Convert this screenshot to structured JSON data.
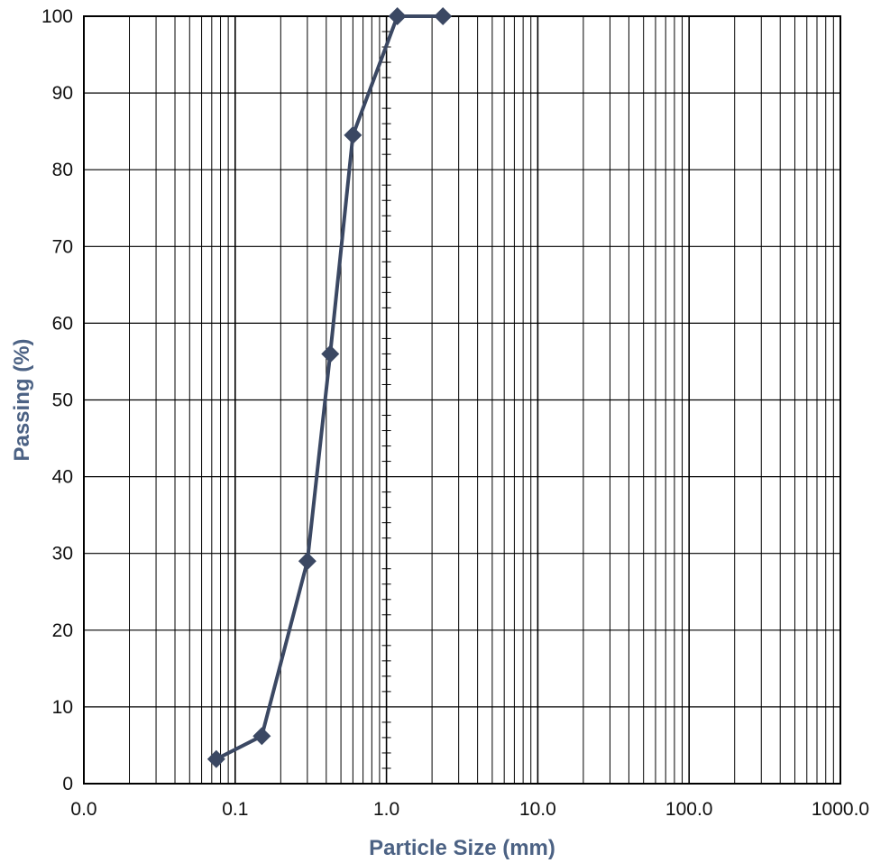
{
  "chart_data": {
    "type": "line",
    "title": "",
    "xlabel": "Particle Size (mm)",
    "ylabel": "Passing (%)",
    "x_scale": "log",
    "xlim": [
      0.01,
      1000
    ],
    "ylim": [
      0,
      100
    ],
    "x_tick_labels": [
      "0.0",
      "0.1",
      "1.0",
      "10.0",
      "100.0",
      "1000.0"
    ],
    "y_tick_labels": [
      "0",
      "10",
      "20",
      "30",
      "40",
      "50",
      "60",
      "70",
      "80",
      "90",
      "100"
    ],
    "grid": true,
    "legend": "none",
    "series": [
      {
        "x": [
          0.075,
          0.15,
          0.3,
          0.425,
          0.6,
          1.18,
          2.36
        ],
        "y": [
          3.2,
          6.2,
          29,
          56,
          84.5,
          100,
          100
        ]
      }
    ],
    "colors": {
      "series": "#3b4863",
      "axis_title": "#4c6284",
      "grid": "#000000"
    }
  }
}
